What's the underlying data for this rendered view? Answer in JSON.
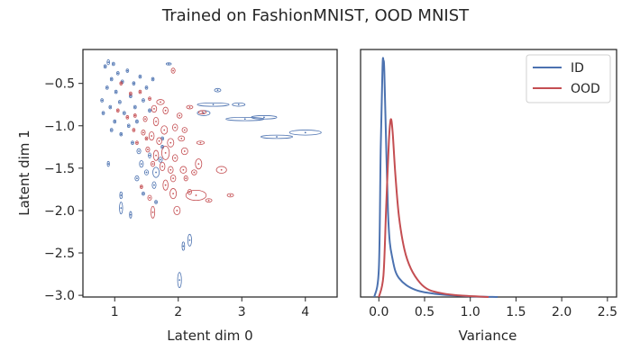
{
  "title": "Trained on FashionMNIST, OOD MNIST",
  "colors": {
    "id": "#4c72b0",
    "ood": "#c44e52",
    "axis": "#262626"
  },
  "chart_data": [
    {
      "type": "scatter",
      "xlabel": "Latent dim 0",
      "ylabel": "Latent dim 1",
      "xlim": [
        0.5,
        4.5
      ],
      "ylim": [
        -3.02,
        -0.1
      ],
      "xticks": [
        1,
        2,
        3,
        4
      ],
      "xtick_labels": [
        "1",
        "2",
        "3",
        "4"
      ],
      "yticks": [
        -0.5,
        -1.0,
        -1.5,
        -2.0,
        -2.5,
        -3.0
      ],
      "ytick_labels": [
        "−0.5",
        "−1.0",
        "−1.5",
        "−2.0",
        "−2.5",
        "−3.0"
      ],
      "grid": false,
      "marker": "ellipse (mean with variance extent)",
      "series": [
        {
          "color": "#4c72b0",
          "points": [
            {
              "x": 0.85,
              "y": -0.3,
              "sx": 0.02,
              "sy": 0.02
            },
            {
              "x": 0.9,
              "y": -0.25,
              "sx": 0.02,
              "sy": 0.03
            },
            {
              "x": 0.98,
              "y": -0.27,
              "sx": 0.02,
              "sy": 0.02
            },
            {
              "x": 1.05,
              "y": -0.38,
              "sx": 0.02,
              "sy": 0.02
            },
            {
              "x": 0.95,
              "y": -0.45,
              "sx": 0.02,
              "sy": 0.02
            },
            {
              "x": 0.88,
              "y": -0.55,
              "sx": 0.02,
              "sy": 0.02
            },
            {
              "x": 1.02,
              "y": -0.6,
              "sx": 0.02,
              "sy": 0.02
            },
            {
              "x": 1.12,
              "y": -0.48,
              "sx": 0.02,
              "sy": 0.02
            },
            {
              "x": 1.2,
              "y": -0.35,
              "sx": 0.02,
              "sy": 0.02
            },
            {
              "x": 1.3,
              "y": -0.5,
              "sx": 0.02,
              "sy": 0.02
            },
            {
              "x": 1.4,
              "y": -0.42,
              "sx": 0.02,
              "sy": 0.02
            },
            {
              "x": 1.5,
              "y": -0.55,
              "sx": 0.02,
              "sy": 0.02
            },
            {
              "x": 1.6,
              "y": -0.45,
              "sx": 0.02,
              "sy": 0.02
            },
            {
              "x": 1.85,
              "y": -0.27,
              "sx": 0.04,
              "sy": 0.01
            },
            {
              "x": 0.8,
              "y": -0.7,
              "sx": 0.02,
              "sy": 0.02
            },
            {
              "x": 0.82,
              "y": -0.85,
              "sx": 0.02,
              "sy": 0.02
            },
            {
              "x": 0.93,
              "y": -0.78,
              "sx": 0.02,
              "sy": 0.02
            },
            {
              "x": 1.0,
              "y": -0.95,
              "sx": 0.02,
              "sy": 0.02
            },
            {
              "x": 1.08,
              "y": -0.72,
              "sx": 0.02,
              "sy": 0.02
            },
            {
              "x": 1.15,
              "y": -0.85,
              "sx": 0.02,
              "sy": 0.02
            },
            {
              "x": 1.25,
              "y": -0.65,
              "sx": 0.02,
              "sy": 0.02
            },
            {
              "x": 1.32,
              "y": -0.78,
              "sx": 0.02,
              "sy": 0.02
            },
            {
              "x": 1.45,
              "y": -0.7,
              "sx": 0.02,
              "sy": 0.02
            },
            {
              "x": 1.55,
              "y": -0.82,
              "sx": 0.02,
              "sy": 0.02
            },
            {
              "x": 0.95,
              "y": -1.05,
              "sx": 0.02,
              "sy": 0.02
            },
            {
              "x": 1.1,
              "y": -1.1,
              "sx": 0.02,
              "sy": 0.02
            },
            {
              "x": 1.22,
              "y": -1.0,
              "sx": 0.02,
              "sy": 0.02
            },
            {
              "x": 1.35,
              "y": -0.95,
              "sx": 0.02,
              "sy": 0.02
            },
            {
              "x": 1.28,
              "y": -1.2,
              "sx": 0.02,
              "sy": 0.02
            },
            {
              "x": 1.38,
              "y": -1.3,
              "sx": 0.03,
              "sy": 0.03
            },
            {
              "x": 1.42,
              "y": -1.45,
              "sx": 0.03,
              "sy": 0.04
            },
            {
              "x": 1.35,
              "y": -1.62,
              "sx": 0.03,
              "sy": 0.03
            },
            {
              "x": 1.5,
              "y": -1.55,
              "sx": 0.03,
              "sy": 0.03
            },
            {
              "x": 1.65,
              "y": -1.55,
              "sx": 0.05,
              "sy": 0.06
            },
            {
              "x": 1.62,
              "y": -1.7,
              "sx": 0.03,
              "sy": 0.04
            },
            {
              "x": 1.72,
              "y": -1.4,
              "sx": 0.03,
              "sy": 0.03
            },
            {
              "x": 1.55,
              "y": -1.35,
              "sx": 0.02,
              "sy": 0.03
            },
            {
              "x": 1.45,
              "y": -1.8,
              "sx": 0.02,
              "sy": 0.02
            },
            {
              "x": 1.65,
              "y": -1.9,
              "sx": 0.02,
              "sy": 0.02
            },
            {
              "x": 1.1,
              "y": -1.82,
              "sx": 0.02,
              "sy": 0.04
            },
            {
              "x": 1.1,
              "y": -1.97,
              "sx": 0.025,
              "sy": 0.07
            },
            {
              "x": 1.25,
              "y": -2.05,
              "sx": 0.015,
              "sy": 0.04
            },
            {
              "x": 1.75,
              "y": -1.25,
              "sx": 0.02,
              "sy": 0.02
            },
            {
              "x": 0.9,
              "y": -1.45,
              "sx": 0.015,
              "sy": 0.03
            },
            {
              "x": 2.4,
              "y": -0.85,
              "sx": 0.1,
              "sy": 0.03
            },
            {
              "x": 2.55,
              "y": -0.75,
              "sx": 0.25,
              "sy": 0.02
            },
            {
              "x": 2.62,
              "y": -0.58,
              "sx": 0.05,
              "sy": 0.02
            },
            {
              "x": 2.95,
              "y": -0.75,
              "sx": 0.1,
              "sy": 0.02
            },
            {
              "x": 3.05,
              "y": -0.92,
              "sx": 0.3,
              "sy": 0.02
            },
            {
              "x": 3.35,
              "y": -0.9,
              "sx": 0.2,
              "sy": 0.02
            },
            {
              "x": 3.55,
              "y": -1.13,
              "sx": 0.25,
              "sy": 0.02
            },
            {
              "x": 4.0,
              "y": -1.08,
              "sx": 0.25,
              "sy": 0.03
            },
            {
              "x": 1.75,
              "y": -1.15,
              "sx": 0.02,
              "sy": 0.02
            },
            {
              "x": 2.08,
              "y": -2.42,
              "sx": 0.02,
              "sy": 0.05
            },
            {
              "x": 2.18,
              "y": -2.35,
              "sx": 0.03,
              "sy": 0.07
            },
            {
              "x": 2.02,
              "y": -2.82,
              "sx": 0.03,
              "sy": 0.09
            }
          ]
        },
        {
          "color": "#c44e52",
          "points": [
            {
              "x": 1.92,
              "y": -0.35,
              "sx": 0.03,
              "sy": 0.03
            },
            {
              "x": 1.1,
              "y": -0.5,
              "sx": 0.02,
              "sy": 0.02
            },
            {
              "x": 1.25,
              "y": -0.62,
              "sx": 0.02,
              "sy": 0.02
            },
            {
              "x": 1.4,
              "y": -0.6,
              "sx": 0.02,
              "sy": 0.02
            },
            {
              "x": 1.55,
              "y": -0.68,
              "sx": 0.02,
              "sy": 0.02
            },
            {
              "x": 1.72,
              "y": -0.72,
              "sx": 0.06,
              "sy": 0.03
            },
            {
              "x": 1.62,
              "y": -0.8,
              "sx": 0.04,
              "sy": 0.04
            },
            {
              "x": 1.8,
              "y": -0.82,
              "sx": 0.04,
              "sy": 0.04
            },
            {
              "x": 2.02,
              "y": -0.88,
              "sx": 0.04,
              "sy": 0.03
            },
            {
              "x": 2.18,
              "y": -0.78,
              "sx": 0.05,
              "sy": 0.02
            },
            {
              "x": 2.38,
              "y": -0.84,
              "sx": 0.06,
              "sy": 0.02
            },
            {
              "x": 1.2,
              "y": -0.9,
              "sx": 0.02,
              "sy": 0.02
            },
            {
              "x": 1.32,
              "y": -0.88,
              "sx": 0.02,
              "sy": 0.02
            },
            {
              "x": 1.48,
              "y": -0.92,
              "sx": 0.03,
              "sy": 0.03
            },
            {
              "x": 1.65,
              "y": -0.95,
              "sx": 0.04,
              "sy": 0.05
            },
            {
              "x": 1.78,
              "y": -1.05,
              "sx": 0.05,
              "sy": 0.05
            },
            {
              "x": 1.95,
              "y": -1.02,
              "sx": 0.04,
              "sy": 0.04
            },
            {
              "x": 2.1,
              "y": -1.05,
              "sx": 0.04,
              "sy": 0.03
            },
            {
              "x": 1.3,
              "y": -1.05,
              "sx": 0.02,
              "sy": 0.02
            },
            {
              "x": 1.45,
              "y": -1.08,
              "sx": 0.03,
              "sy": 0.03
            },
            {
              "x": 1.58,
              "y": -1.12,
              "sx": 0.04,
              "sy": 0.05
            },
            {
              "x": 1.7,
              "y": -1.18,
              "sx": 0.04,
              "sy": 0.04
            },
            {
              "x": 1.88,
              "y": -1.2,
              "sx": 0.05,
              "sy": 0.05
            },
            {
              "x": 2.05,
              "y": -1.15,
              "sx": 0.05,
              "sy": 0.03
            },
            {
              "x": 2.35,
              "y": -1.2,
              "sx": 0.06,
              "sy": 0.02
            },
            {
              "x": 1.35,
              "y": -1.2,
              "sx": 0.02,
              "sy": 0.02
            },
            {
              "x": 1.52,
              "y": -1.28,
              "sx": 0.03,
              "sy": 0.03
            },
            {
              "x": 1.65,
              "y": -1.35,
              "sx": 0.04,
              "sy": 0.06
            },
            {
              "x": 1.8,
              "y": -1.32,
              "sx": 0.06,
              "sy": 0.08
            },
            {
              "x": 1.95,
              "y": -1.38,
              "sx": 0.04,
              "sy": 0.04
            },
            {
              "x": 2.1,
              "y": -1.3,
              "sx": 0.05,
              "sy": 0.04
            },
            {
              "x": 1.6,
              "y": -1.45,
              "sx": 0.03,
              "sy": 0.03
            },
            {
              "x": 1.75,
              "y": -1.48,
              "sx": 0.04,
              "sy": 0.05
            },
            {
              "x": 1.88,
              "y": -1.52,
              "sx": 0.04,
              "sy": 0.04
            },
            {
              "x": 2.08,
              "y": -1.52,
              "sx": 0.05,
              "sy": 0.04
            },
            {
              "x": 2.32,
              "y": -1.45,
              "sx": 0.05,
              "sy": 0.06
            },
            {
              "x": 2.68,
              "y": -1.52,
              "sx": 0.08,
              "sy": 0.04
            },
            {
              "x": 2.25,
              "y": -1.55,
              "sx": 0.04,
              "sy": 0.03
            },
            {
              "x": 1.92,
              "y": -1.62,
              "sx": 0.04,
              "sy": 0.04
            },
            {
              "x": 2.12,
              "y": -1.62,
              "sx": 0.03,
              "sy": 0.03
            },
            {
              "x": 1.8,
              "y": -1.7,
              "sx": 0.04,
              "sy": 0.06
            },
            {
              "x": 1.42,
              "y": -1.72,
              "sx": 0.02,
              "sy": 0.02
            },
            {
              "x": 2.18,
              "y": -1.78,
              "sx": 0.03,
              "sy": 0.03
            },
            {
              "x": 1.92,
              "y": -1.8,
              "sx": 0.05,
              "sy": 0.06
            },
            {
              "x": 1.55,
              "y": -1.85,
              "sx": 0.03,
              "sy": 0.03
            },
            {
              "x": 2.28,
              "y": -1.82,
              "sx": 0.16,
              "sy": 0.06
            },
            {
              "x": 2.48,
              "y": -1.88,
              "sx": 0.05,
              "sy": 0.02
            },
            {
              "x": 2.82,
              "y": -1.82,
              "sx": 0.05,
              "sy": 0.02
            },
            {
              "x": 1.6,
              "y": -2.02,
              "sx": 0.03,
              "sy": 0.07
            },
            {
              "x": 1.98,
              "y": -2.0,
              "sx": 0.05,
              "sy": 0.05
            },
            {
              "x": 1.5,
              "y": -1.15,
              "sx": 0.02,
              "sy": 0.02
            },
            {
              "x": 1.05,
              "y": -0.82,
              "sx": 0.02,
              "sy": 0.02
            }
          ]
        }
      ]
    },
    {
      "type": "line",
      "xlabel": "Variance",
      "ylabel": "",
      "xlim": [
        -0.2,
        2.6
      ],
      "ylim": [
        0,
        1.0
      ],
      "xticks": [
        0.0,
        0.5,
        1.0,
        1.5,
        2.0,
        2.5
      ],
      "xtick_labels": [
        "0.0",
        "0.5",
        "1.0",
        "1.5",
        "2.0",
        "2.5"
      ],
      "yticks": [],
      "grid": false,
      "legend": {
        "position": "top-right"
      },
      "series": [
        {
          "name": "ID",
          "color": "#4c72b0",
          "x": [
            -0.05,
            0.0,
            0.02,
            0.04,
            0.05,
            0.06,
            0.08,
            0.1,
            0.12,
            0.15,
            0.18,
            0.22,
            0.3,
            0.4,
            0.5,
            0.7,
            1.0,
            1.3
          ],
          "y": [
            0.0,
            0.12,
            0.62,
            0.97,
            1.0,
            0.95,
            0.64,
            0.36,
            0.23,
            0.16,
            0.11,
            0.08,
            0.05,
            0.03,
            0.02,
            0.01,
            0.003,
            0.0
          ]
        },
        {
          "name": "OOD",
          "color": "#c44e52",
          "x": [
            0.0,
            0.05,
            0.08,
            0.11,
            0.13,
            0.15,
            0.18,
            0.22,
            0.28,
            0.35,
            0.45,
            0.55,
            0.7,
            0.9,
            1.2
          ],
          "y": [
            0.0,
            0.09,
            0.38,
            0.66,
            0.75,
            0.7,
            0.52,
            0.34,
            0.2,
            0.12,
            0.06,
            0.03,
            0.015,
            0.006,
            0.0
          ]
        }
      ]
    }
  ]
}
